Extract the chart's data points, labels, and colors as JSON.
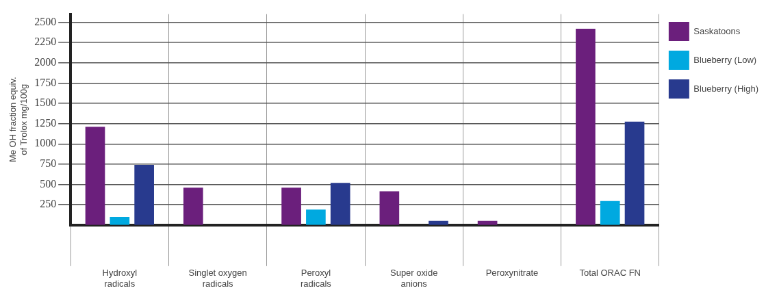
{
  "chart_data": {
    "type": "bar",
    "ylabel": "Me OH fraction equiv.\nof Trolox mg/100g",
    "categories": [
      "Hydroxyl\nradicals",
      "Singlet oxygen\nradicals",
      "Peroxyl\nradicals",
      "Super oxide\nanions",
      "Peroxynitrate",
      "Total ORAC FN"
    ],
    "series": [
      {
        "name": "Saskatoons",
        "color": "#6b1f7c",
        "values": [
          1210,
          460,
          460,
          415,
          50,
          2420
        ]
      },
      {
        "name": "Blueberry (Low)",
        "color": "#00a9e0",
        "values": [
          100,
          0,
          190,
          0,
          0,
          295
        ]
      },
      {
        "name": "Blueberry (High)",
        "color": "#283a8e",
        "values": [
          740,
          0,
          520,
          50,
          0,
          1275
        ]
      }
    ],
    "ylim": [
      0,
      2600
    ],
    "yticks": [
      250,
      500,
      750,
      1000,
      1250,
      1500,
      1750,
      2000,
      2250,
      2500
    ],
    "grid": true,
    "legend": "top right"
  }
}
